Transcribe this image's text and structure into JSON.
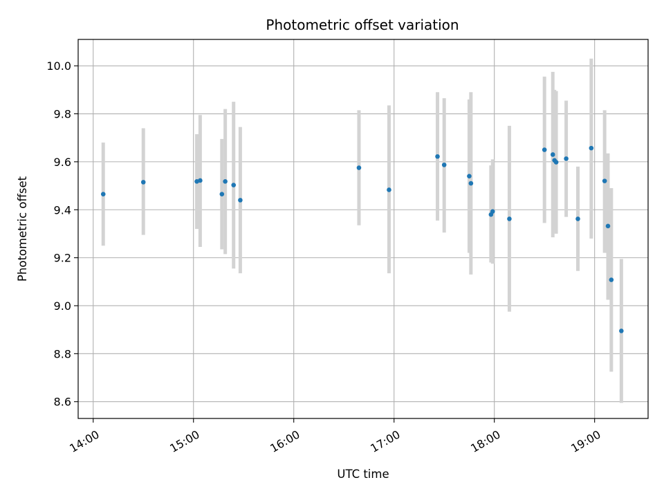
{
  "chart_data": {
    "type": "scatter",
    "title": "Photometric offset variation",
    "xlabel": "UTC time",
    "ylabel": "Photometric offset",
    "xlim": [
      "13:51",
      "19:32"
    ],
    "ylim": [
      8.53,
      10.11
    ],
    "x_tick_labels": [
      "14:00",
      "15:00",
      "16:00",
      "17:00",
      "18:00",
      "19:00"
    ],
    "y_tick_labels": [
      "8.6",
      "8.8",
      "9.0",
      "9.2",
      "9.4",
      "9.6",
      "9.8",
      "10.0"
    ],
    "y_ticks": [
      8.6,
      8.8,
      9.0,
      9.2,
      9.4,
      9.6,
      9.8,
      10.0
    ],
    "grid": true,
    "colors": {
      "point": "#1f77b4",
      "errorbar": "#d3d3d3",
      "grid": "#b0b0b0"
    },
    "points": [
      {
        "x": "14:06",
        "y": 9.465,
        "lo": 9.25,
        "hi": 9.68
      },
      {
        "x": "14:30",
        "y": 9.515,
        "lo": 9.295,
        "hi": 9.74
      },
      {
        "x": "15:02",
        "y": 9.518,
        "lo": 9.32,
        "hi": 9.715
      },
      {
        "x": "15:04",
        "y": 9.522,
        "lo": 9.245,
        "hi": 9.795
      },
      {
        "x": "15:17",
        "y": 9.465,
        "lo": 9.235,
        "hi": 9.695
      },
      {
        "x": "15:19",
        "y": 9.518,
        "lo": 9.215,
        "hi": 9.82
      },
      {
        "x": "15:24",
        "y": 9.503,
        "lo": 9.155,
        "hi": 9.85
      },
      {
        "x": "15:28",
        "y": 9.44,
        "lo": 9.135,
        "hi": 9.745
      },
      {
        "x": "16:39",
        "y": 9.575,
        "lo": 9.335,
        "hi": 9.815
      },
      {
        "x": "16:57",
        "y": 9.483,
        "lo": 9.135,
        "hi": 9.835
      },
      {
        "x": "17:26",
        "y": 9.622,
        "lo": 9.355,
        "hi": 9.89
      },
      {
        "x": "17:30",
        "y": 9.587,
        "lo": 9.305,
        "hi": 9.865
      },
      {
        "x": "17:45",
        "y": 9.54,
        "lo": 9.22,
        "hi": 9.86
      },
      {
        "x": "17:46",
        "y": 9.51,
        "lo": 9.13,
        "hi": 9.89
      },
      {
        "x": "17:58",
        "y": 9.38,
        "lo": 9.18,
        "hi": 9.585
      },
      {
        "x": "17:59",
        "y": 9.393,
        "lo": 9.175,
        "hi": 9.61
      },
      {
        "x": "18:09",
        "y": 9.362,
        "lo": 8.975,
        "hi": 9.75
      },
      {
        "x": "18:30",
        "y": 9.65,
        "lo": 9.345,
        "hi": 9.955
      },
      {
        "x": "18:35",
        "y": 9.63,
        "lo": 9.285,
        "hi": 9.975
      },
      {
        "x": "18:36",
        "y": 9.606,
        "lo": 9.315,
        "hi": 9.9
      },
      {
        "x": "18:37",
        "y": 9.598,
        "lo": 9.3,
        "hi": 9.895
      },
      {
        "x": "18:43",
        "y": 9.613,
        "lo": 9.37,
        "hi": 9.855
      },
      {
        "x": "18:50",
        "y": 9.362,
        "lo": 9.145,
        "hi": 9.58
      },
      {
        "x": "18:58",
        "y": 9.657,
        "lo": 9.28,
        "hi": 10.03
      },
      {
        "x": "19:06",
        "y": 9.52,
        "lo": 9.22,
        "hi": 9.815
      },
      {
        "x": "19:08",
        "y": 9.332,
        "lo": 9.025,
        "hi": 9.635
      },
      {
        "x": "19:10",
        "y": 9.108,
        "lo": 8.725,
        "hi": 9.49
      },
      {
        "x": "19:16",
        "y": 8.895,
        "lo": 8.595,
        "hi": 9.195
      }
    ]
  }
}
